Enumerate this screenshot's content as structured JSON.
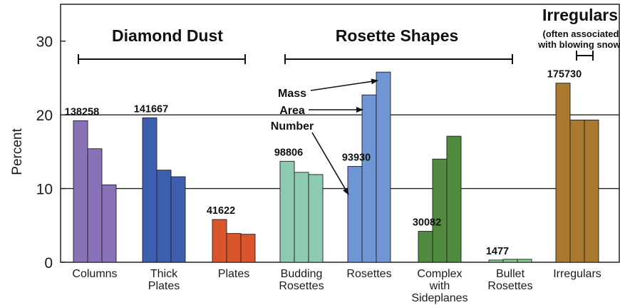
{
  "chart_data": {
    "type": "bar",
    "ylabel": "Percent",
    "ylim": [
      0,
      35
    ],
    "yticks": [
      "0",
      "10",
      "20",
      "30"
    ],
    "grid": "horizontal lines at 10 and 20",
    "categories": [
      {
        "label": [
          "Columns"
        ],
        "values": [
          19.2,
          15.4,
          10.5
        ],
        "count": "138258",
        "color": "#8a72b8"
      },
      {
        "label": [
          "Thick",
          "Plates"
        ],
        "values": [
          19.6,
          12.5,
          11.6
        ],
        "count": "141667",
        "color": "#3e5fb0"
      },
      {
        "label": [
          "Plates"
        ],
        "values": [
          5.8,
          3.9,
          3.8
        ],
        "count": "41622",
        "color": "#d9552c"
      },
      {
        "label": [
          "Budding",
          "Rosettes"
        ],
        "values": [
          13.7,
          12.2,
          11.9
        ],
        "count": "98806",
        "color": "#8dcbb0"
      },
      {
        "label": [
          "Rosettes"
        ],
        "values": [
          13.0,
          22.7,
          25.8
        ],
        "count": "93930",
        "color": "#6f95d4"
      },
      {
        "label": [
          "Complex",
          "with",
          "Sideplanes"
        ],
        "values": [
          4.2,
          14.0,
          17.1
        ],
        "count": "30082",
        "color": "#4f8a3e"
      },
      {
        "label": [
          "Bullet",
          "Rosettes"
        ],
        "values": [
          0.3,
          0.4,
          0.4
        ],
        "count": "1477",
        "color": "#86c98a"
      },
      {
        "label": [
          "Irregulars"
        ],
        "values": [
          24.3,
          19.3,
          19.3
        ],
        "count": "175730",
        "color": "#a8792e"
      }
    ],
    "group_labels": [
      {
        "text": "Diamond Dust"
      },
      {
        "text": "Rosette Shapes"
      },
      {
        "text": "Irregulars",
        "subtitle": [
          "(often associated",
          "with blowing snow)"
        ]
      }
    ],
    "annotations": [
      "Mass",
      "Area",
      "Number"
    ]
  }
}
